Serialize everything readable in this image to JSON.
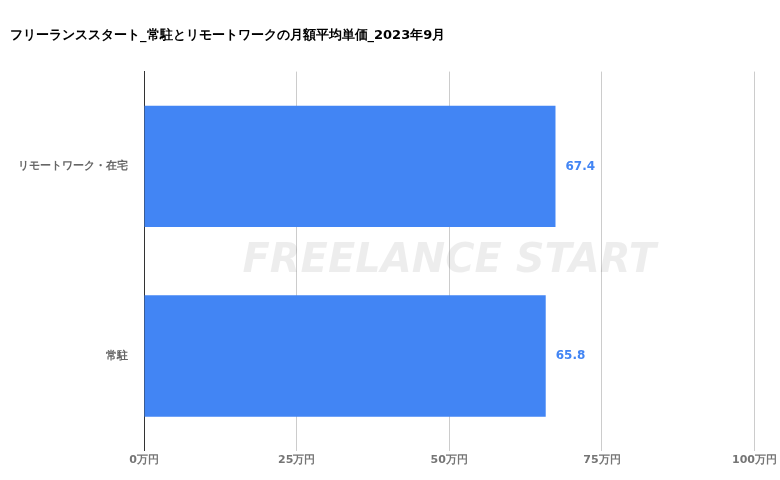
{
  "chart_data": {
    "type": "bar",
    "orientation": "horizontal",
    "title": "フリーランススタート_常駐とリモートワークの月額平均単価_2023年9月",
    "annotations": [
      "FREELANCE START"
    ],
    "categories": [
      "リモートワーク・在宅",
      "常駐"
    ],
    "values": [
      67.4,
      65.8
    ],
    "color": "#4285f4",
    "xlim": [
      0,
      100
    ],
    "xticks": [
      {
        "value": 0,
        "label": "0万円"
      },
      {
        "value": 25,
        "label": "25万円"
      },
      {
        "value": 50,
        "label": "50万円"
      },
      {
        "value": 75,
        "label": "75万円"
      },
      {
        "value": 100,
        "label": "100万円"
      }
    ],
    "grid": true,
    "data_labels": true
  }
}
